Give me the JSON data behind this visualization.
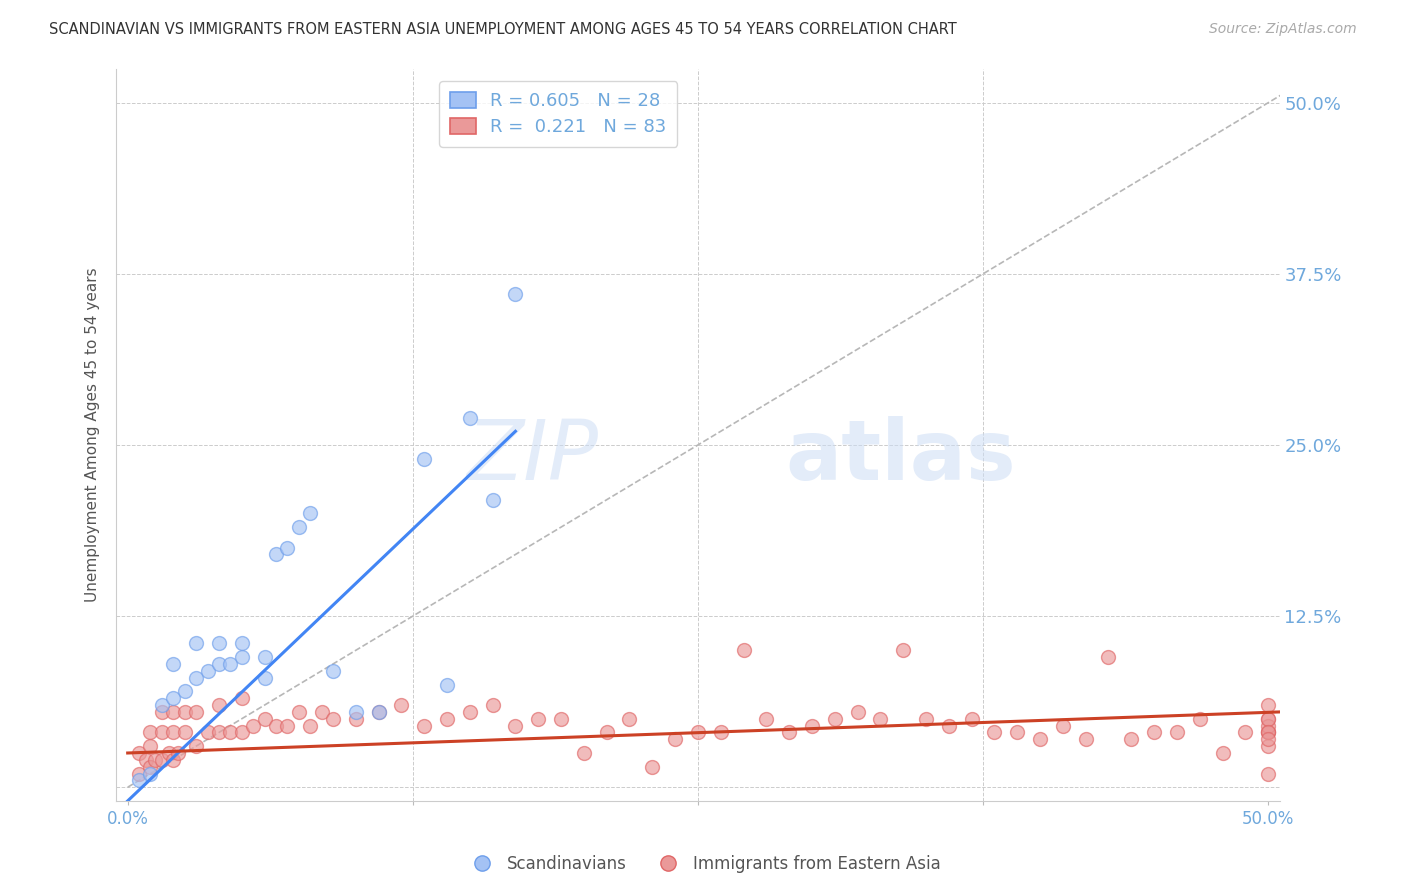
{
  "title": "SCANDINAVIAN VS IMMIGRANTS FROM EASTERN ASIA UNEMPLOYMENT AMONG AGES 45 TO 54 YEARS CORRELATION CHART",
  "source": "Source: ZipAtlas.com",
  "ylabel": "Unemployment Among Ages 45 to 54 years",
  "xlim": [
    -0.005,
    0.505
  ],
  "ylim": [
    -0.01,
    0.525
  ],
  "blue_color": "#a4c2f4",
  "blue_edge": "#6d9eeb",
  "pink_color": "#ea9999",
  "pink_edge": "#e06666",
  "trend_blue": "#4285F4",
  "trend_pink": "#cc4125",
  "ref_line_color": "#b7b7b7",
  "watermark_zip": "ZIP",
  "watermark_atlas": "atlas",
  "scandinavian_x": [
    0.005,
    0.01,
    0.015,
    0.02,
    0.02,
    0.025,
    0.03,
    0.03,
    0.035,
    0.04,
    0.04,
    0.045,
    0.05,
    0.05,
    0.06,
    0.06,
    0.065,
    0.07,
    0.075,
    0.08,
    0.09,
    0.1,
    0.11,
    0.13,
    0.14,
    0.15,
    0.16,
    0.17
  ],
  "scandinavian_y": [
    0.005,
    0.01,
    0.06,
    0.065,
    0.09,
    0.07,
    0.08,
    0.105,
    0.085,
    0.09,
    0.105,
    0.09,
    0.095,
    0.105,
    0.08,
    0.095,
    0.17,
    0.175,
    0.19,
    0.2,
    0.085,
    0.055,
    0.055,
    0.24,
    0.075,
    0.27,
    0.21,
    0.36
  ],
  "eastern_asia_x": [
    0.005,
    0.005,
    0.008,
    0.01,
    0.01,
    0.01,
    0.012,
    0.015,
    0.015,
    0.015,
    0.018,
    0.02,
    0.02,
    0.02,
    0.022,
    0.025,
    0.025,
    0.03,
    0.03,
    0.035,
    0.04,
    0.04,
    0.045,
    0.05,
    0.05,
    0.055,
    0.06,
    0.065,
    0.07,
    0.075,
    0.08,
    0.085,
    0.09,
    0.1,
    0.11,
    0.12,
    0.13,
    0.14,
    0.15,
    0.16,
    0.17,
    0.18,
    0.19,
    0.2,
    0.21,
    0.22,
    0.23,
    0.24,
    0.25,
    0.26,
    0.27,
    0.28,
    0.29,
    0.3,
    0.31,
    0.32,
    0.33,
    0.34,
    0.35,
    0.36,
    0.37,
    0.38,
    0.39,
    0.4,
    0.41,
    0.42,
    0.43,
    0.44,
    0.45,
    0.46,
    0.47,
    0.48,
    0.49,
    0.5,
    0.5,
    0.5,
    0.5,
    0.5,
    0.5,
    0.5,
    0.5,
    0.5,
    0.5
  ],
  "eastern_asia_y": [
    0.01,
    0.025,
    0.02,
    0.015,
    0.03,
    0.04,
    0.02,
    0.02,
    0.04,
    0.055,
    0.025,
    0.02,
    0.04,
    0.055,
    0.025,
    0.04,
    0.055,
    0.03,
    0.055,
    0.04,
    0.04,
    0.06,
    0.04,
    0.04,
    0.065,
    0.045,
    0.05,
    0.045,
    0.045,
    0.055,
    0.045,
    0.055,
    0.05,
    0.05,
    0.055,
    0.06,
    0.045,
    0.05,
    0.055,
    0.06,
    0.045,
    0.05,
    0.05,
    0.025,
    0.04,
    0.05,
    0.015,
    0.035,
    0.04,
    0.04,
    0.1,
    0.05,
    0.04,
    0.045,
    0.05,
    0.055,
    0.05,
    0.1,
    0.05,
    0.045,
    0.05,
    0.04,
    0.04,
    0.035,
    0.045,
    0.035,
    0.095,
    0.035,
    0.04,
    0.04,
    0.05,
    0.025,
    0.04,
    0.04,
    0.03,
    0.05,
    0.04,
    0.045,
    0.05,
    0.01,
    0.04,
    0.035,
    0.06
  ],
  "blue_trend_x0": 0.0,
  "blue_trend_y0": -0.01,
  "blue_trend_x1": 0.17,
  "blue_trend_y1": 0.26,
  "pink_trend_x0": 0.0,
  "pink_trend_y0": 0.025,
  "pink_trend_x1": 0.505,
  "pink_trend_y1": 0.055,
  "background_color": "#ffffff",
  "title_color": "#333333",
  "axis_label_color": "#555555",
  "tick_color": "#6fa8dc",
  "grid_color": "#cccccc",
  "legend1_r": "0.605",
  "legend1_n": "28",
  "legend2_r": "0.221",
  "legend2_n": "83"
}
